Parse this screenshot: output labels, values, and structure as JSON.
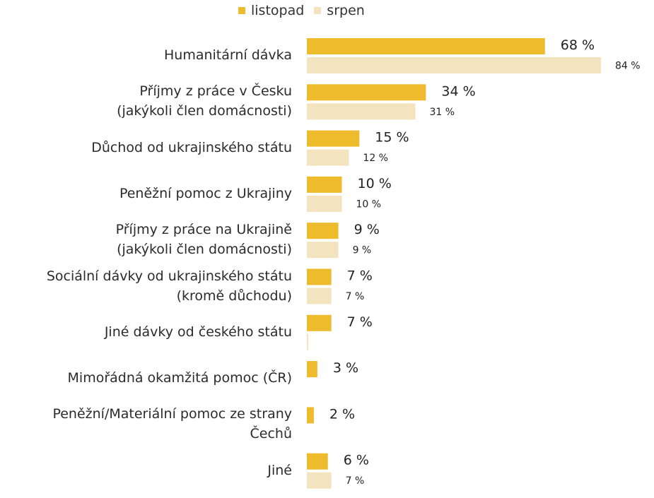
{
  "colors": {
    "listopad": "#edbb2b",
    "srpen": "#f3e4bf"
  },
  "legend": {
    "listopad": "listopad",
    "srpen": "srpen"
  },
  "chart_data": {
    "type": "bar",
    "orientation": "horizontal",
    "categories": [
      [
        "Humanitární dávka"
      ],
      [
        "Příjmy z práce v Česku",
        "(jakýkoli člen domácnosti)"
      ],
      [
        "Důchod od ukrajinského státu"
      ],
      [
        "Peněžní pomoc z Ukrajiny"
      ],
      [
        "Příjmy z práce na Ukrajině",
        "(jakýkoli člen domácnosti)"
      ],
      [
        "Sociální dávky od ukrajinského státu",
        "(kromě důchodu)"
      ],
      [
        "Jiné dávky od českého státu"
      ],
      [
        "Mimořádná okamžitá pomoc (ČR)"
      ],
      [
        "Peněžní/Materiální pomoc ze strany",
        "Čechů"
      ],
      [
        "Jiné"
      ]
    ],
    "series": [
      {
        "name": "listopad",
        "values": [
          68,
          34,
          15,
          10,
          9,
          7,
          7,
          3,
          2,
          6
        ],
        "labels": [
          "68 %",
          "34 %",
          "15 %",
          "10 %",
          "9 %",
          "7 %",
          "7 %",
          "3 %",
          "2 %",
          "6 %"
        ]
      },
      {
        "name": "srpen",
        "values": [
          84,
          31,
          12,
          10,
          9,
          7,
          0,
          null,
          null,
          7
        ],
        "labels": [
          "84 %",
          "31 %",
          "12 %",
          "10 %",
          "9 %",
          "7 %",
          "",
          "",
          "",
          "7 %"
        ]
      }
    ],
    "xlim": [
      0,
      84
    ],
    "grid": false,
    "legend_position": "top"
  }
}
